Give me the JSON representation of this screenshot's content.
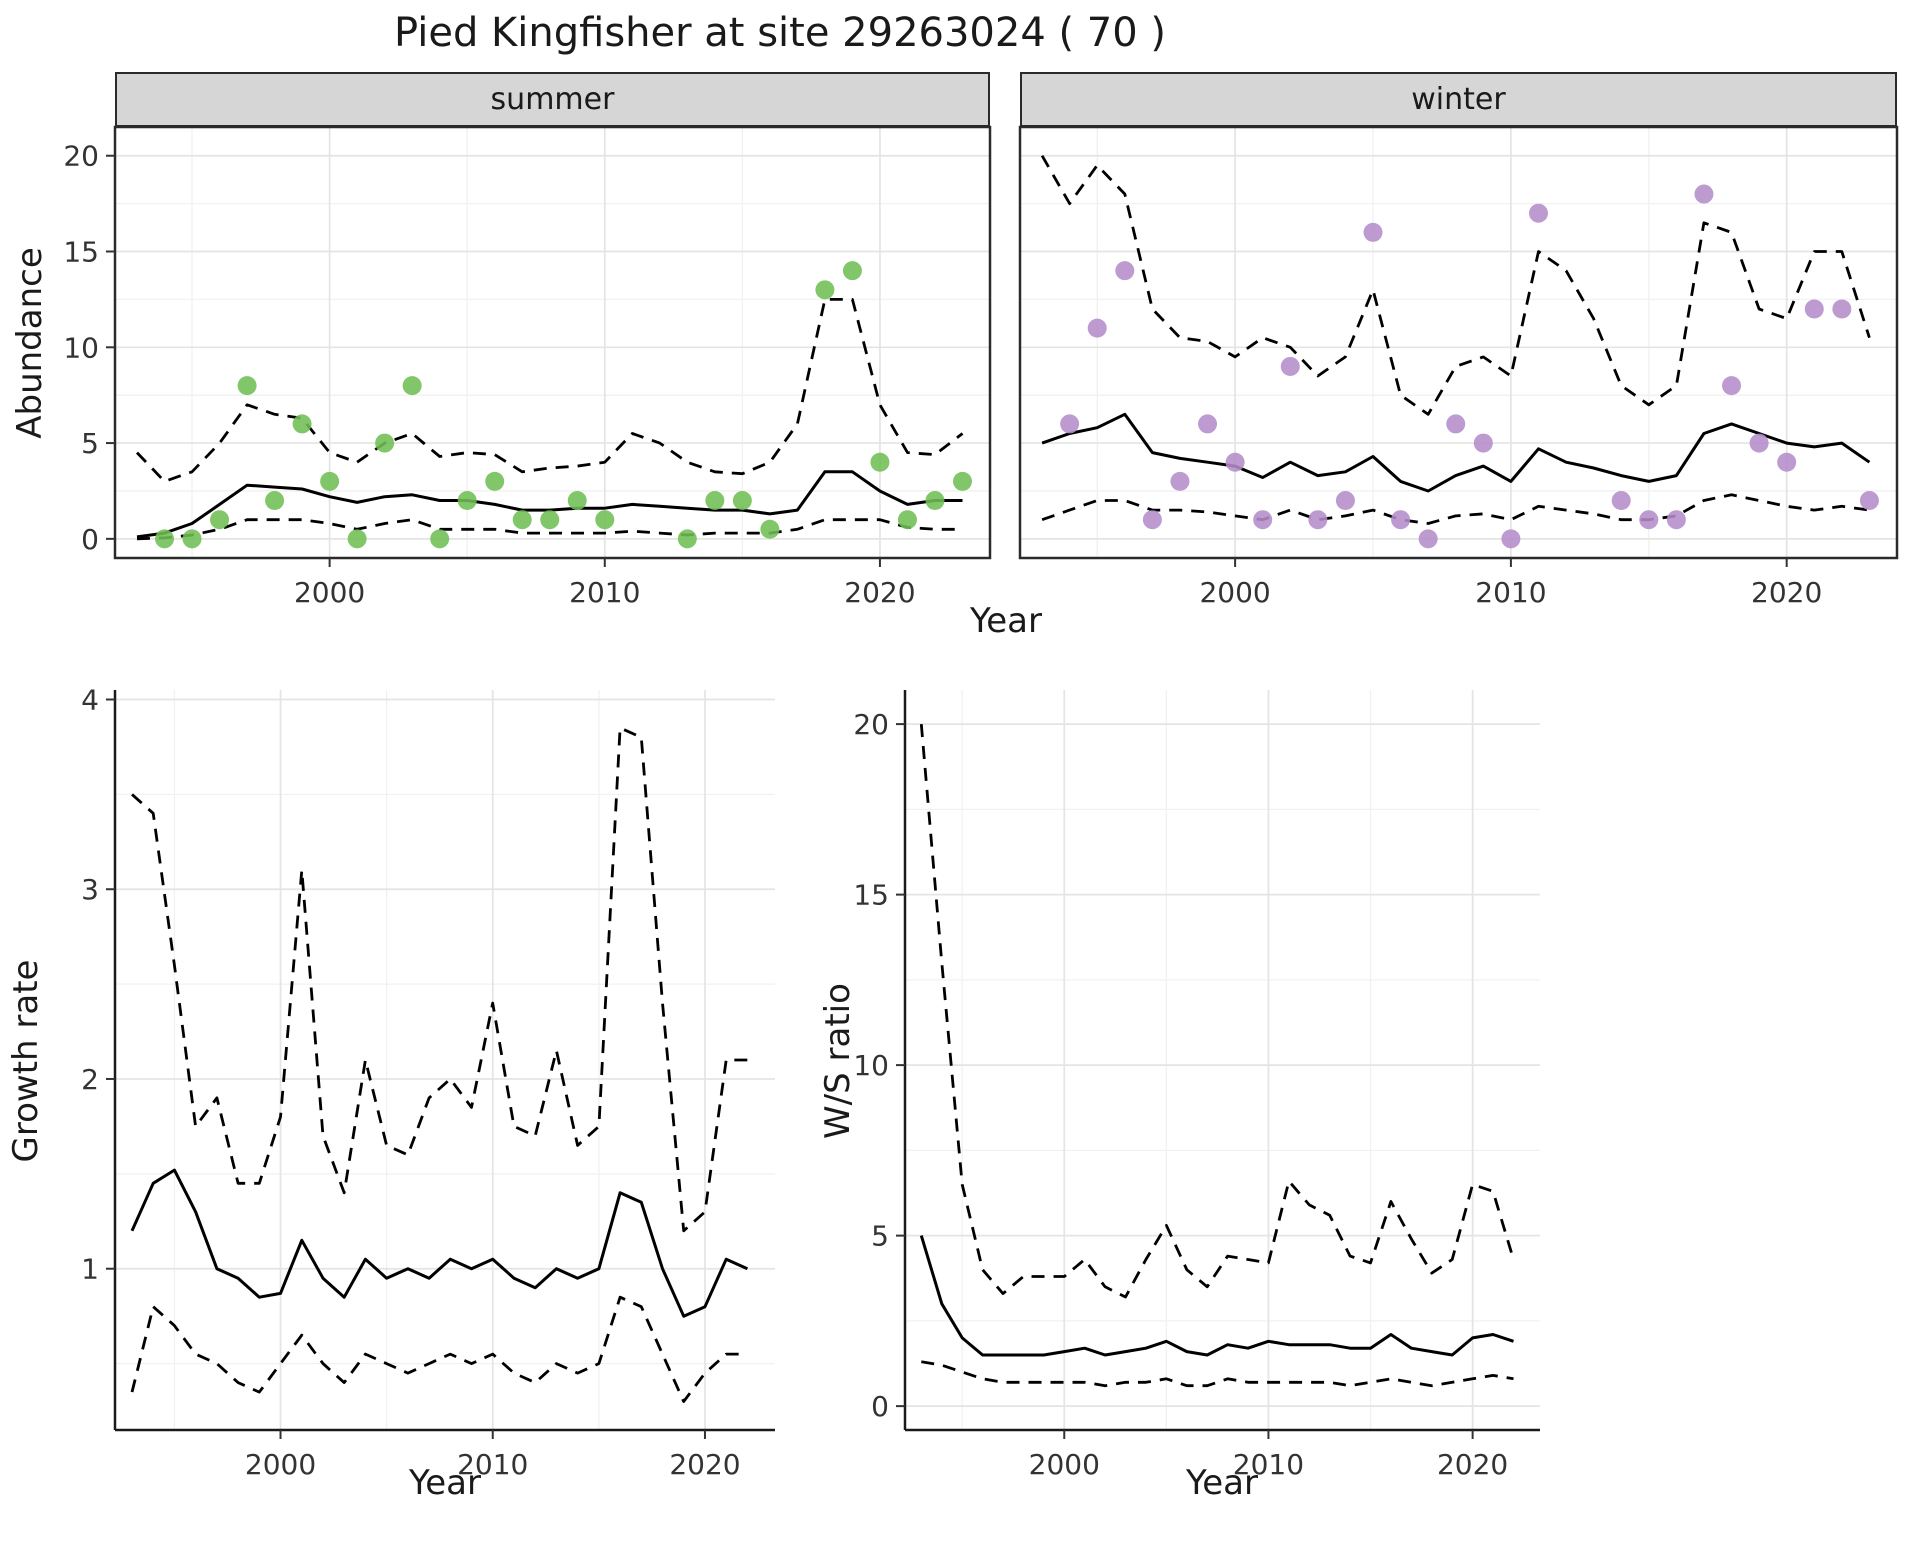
{
  "title": "Pied Kingfisher at site 29263024 ( 70 )",
  "facets": [
    {
      "label": "summer"
    },
    {
      "label": "winter"
    }
  ],
  "axes": {
    "abundance": "Abundance",
    "growth_rate": "Growth rate",
    "ws_ratio": "W/S ratio",
    "year": "Year"
  },
  "colors": {
    "summer_points": "#6fbf54",
    "winter_points": "#b48cc8",
    "line": "#000000",
    "grid_major": "#e4e4e4",
    "grid_minor": "#f1f1f1",
    "strip_bg": "#d6d6d6",
    "frame": "#2b2b2b",
    "tick_text": "#333333"
  },
  "chart_data": [
    {
      "id": "abundance_summer",
      "type": "line",
      "facet": "summer",
      "xlabel": "Year",
      "ylabel": "Abundance",
      "xlim": [
        1992.2,
        2024.0
      ],
      "ylim": [
        -1,
        21.5
      ],
      "xticks": [
        2000,
        2010,
        2020
      ],
      "yticks": [
        0,
        5,
        10,
        15,
        20
      ],
      "xminor": [
        1995,
        2005,
        2015
      ],
      "yminor": [
        2.5,
        7.5,
        12.5,
        17.5
      ],
      "show_y_ticklabels": true,
      "frame": "full",
      "x": [
        1993,
        1994,
        1995,
        1996,
        1997,
        1998,
        1999,
        2000,
        2001,
        2002,
        2003,
        2004,
        2005,
        2006,
        2007,
        2008,
        2009,
        2010,
        2011,
        2012,
        2013,
        2014,
        2015,
        2016,
        2017,
        2018,
        2019,
        2020,
        2021,
        2022,
        2023
      ],
      "series": [
        {
          "name": "fit",
          "style": "solid",
          "values": [
            0.1,
            0.3,
            0.8,
            1.8,
            2.8,
            2.7,
            2.6,
            2.2,
            1.9,
            2.2,
            2.3,
            2.0,
            2.0,
            1.8,
            1.5,
            1.5,
            1.6,
            1.6,
            1.8,
            1.7,
            1.6,
            1.5,
            1.5,
            1.3,
            1.5,
            3.5,
            3.5,
            2.5,
            1.8,
            2.0,
            2.0
          ]
        },
        {
          "name": "upper_ci",
          "style": "dashed",
          "values": [
            4.5,
            3.0,
            3.5,
            5.0,
            7.0,
            6.5,
            6.3,
            4.5,
            4.0,
            5.0,
            5.5,
            4.3,
            4.5,
            4.4,
            3.5,
            3.7,
            3.8,
            4.0,
            5.5,
            5.0,
            4.0,
            3.5,
            3.4,
            4.0,
            6.0,
            12.5,
            12.5,
            7.0,
            4.5,
            4.4,
            5.5
          ]
        },
        {
          "name": "lower_ci",
          "style": "dashed",
          "values": [
            0.0,
            0.05,
            0.2,
            0.5,
            1.0,
            1.0,
            1.0,
            0.8,
            0.5,
            0.8,
            1.0,
            0.5,
            0.5,
            0.5,
            0.3,
            0.3,
            0.3,
            0.3,
            0.4,
            0.3,
            0.2,
            0.3,
            0.3,
            0.3,
            0.5,
            1.0,
            1.0,
            1.0,
            0.6,
            0.5,
            0.5
          ]
        }
      ],
      "points": {
        "name": "observations",
        "color_key": "summer_points",
        "x": [
          1994,
          1995,
          1996,
          1997,
          1998,
          1999,
          2000,
          2001,
          2002,
          2003,
          2004,
          2005,
          2006,
          2007,
          2008,
          2009,
          2010,
          2013,
          2014,
          2015,
          2016,
          2018,
          2019,
          2020,
          2021,
          2022,
          2023
        ],
        "y": [
          0,
          0,
          1,
          8,
          2,
          6,
          3,
          0,
          5,
          8,
          0,
          2,
          3,
          1,
          1,
          2,
          1,
          0,
          2,
          2,
          0.5,
          13,
          14,
          4,
          1,
          2,
          3
        ]
      }
    },
    {
      "id": "abundance_winter",
      "type": "line",
      "facet": "winter",
      "xlabel": "Year",
      "ylabel": "Abundance",
      "xlim": [
        1992.2,
        2024.0
      ],
      "ylim": [
        -1,
        21.5
      ],
      "xticks": [
        2000,
        2010,
        2020
      ],
      "yticks": [
        0,
        5,
        10,
        15,
        20
      ],
      "xminor": [
        1995,
        2005,
        2015
      ],
      "yminor": [
        2.5,
        7.5,
        12.5,
        17.5
      ],
      "show_y_ticklabels": false,
      "frame": "full",
      "x": [
        1993,
        1994,
        1995,
        1996,
        1997,
        1998,
        1999,
        2000,
        2001,
        2002,
        2003,
        2004,
        2005,
        2006,
        2007,
        2008,
        2009,
        2010,
        2011,
        2012,
        2013,
        2014,
        2015,
        2016,
        2017,
        2018,
        2019,
        2020,
        2021,
        2022,
        2023
      ],
      "series": [
        {
          "name": "fit",
          "style": "solid",
          "values": [
            5.0,
            5.5,
            5.8,
            6.5,
            4.5,
            4.2,
            4.0,
            3.8,
            3.2,
            4.0,
            3.3,
            3.5,
            4.3,
            3.0,
            2.5,
            3.3,
            3.8,
            3.0,
            4.7,
            4.0,
            3.7,
            3.3,
            3.0,
            3.3,
            5.5,
            6.0,
            5.5,
            5.0,
            4.8,
            5.0,
            4.0
          ]
        },
        {
          "name": "upper_ci",
          "style": "dashed",
          "values": [
            20,
            17.5,
            19.5,
            18,
            12,
            10.5,
            10.3,
            9.5,
            10.5,
            10,
            8.5,
            9.5,
            13,
            7.5,
            6.5,
            9,
            9.5,
            8.5,
            15,
            14,
            11.5,
            8,
            7,
            8,
            16.5,
            16,
            12,
            11.5,
            15,
            15,
            10.5
          ]
        },
        {
          "name": "lower_ci",
          "style": "dashed",
          "values": [
            1.0,
            1.5,
            2.0,
            2.0,
            1.5,
            1.5,
            1.4,
            1.2,
            1.0,
            1.5,
            1.0,
            1.2,
            1.5,
            1.0,
            0.8,
            1.2,
            1.3,
            1.0,
            1.7,
            1.5,
            1.3,
            1.0,
            1.0,
            1.2,
            2.0,
            2.3,
            2.0,
            1.7,
            1.5,
            1.7,
            1.5
          ]
        }
      ],
      "points": {
        "name": "observations",
        "color_key": "winter_points",
        "x": [
          1994,
          1995,
          1996,
          1997,
          1998,
          1999,
          2000,
          2001,
          2002,
          2003,
          2004,
          2005,
          2006,
          2007,
          2008,
          2009,
          2010,
          2011,
          2014,
          2015,
          2016,
          2017,
          2018,
          2019,
          2020,
          2021,
          2022,
          2023
        ],
        "y": [
          6,
          11,
          14,
          1,
          3,
          6,
          4,
          1,
          9,
          1,
          2,
          16,
          1,
          0,
          6,
          5,
          0,
          17,
          2,
          1,
          1,
          18,
          8,
          5,
          4,
          12,
          12,
          2
        ]
      }
    },
    {
      "id": "growth_rate",
      "type": "line",
      "xlabel": "Year",
      "ylabel": "Growth rate",
      "xlim": [
        1992.2,
        2023.3
      ],
      "ylim": [
        0.15,
        4.05
      ],
      "xticks": [
        2000,
        2010,
        2020
      ],
      "yticks": [
        1,
        2,
        3,
        4
      ],
      "xminor": [
        1995,
        2005,
        2015
      ],
      "yminor": [
        0.5,
        1.5,
        2.5,
        3.5
      ],
      "show_y_ticklabels": true,
      "frame": "open",
      "x": [
        1993,
        1994,
        1995,
        1996,
        1997,
        1998,
        1999,
        2000,
        2001,
        2002,
        2003,
        2004,
        2005,
        2006,
        2007,
        2008,
        2009,
        2010,
        2011,
        2012,
        2013,
        2014,
        2015,
        2016,
        2017,
        2018,
        2019,
        2020,
        2021,
        2022
      ],
      "series": [
        {
          "name": "fit",
          "style": "solid",
          "values": [
            1.2,
            1.45,
            1.52,
            1.3,
            1.0,
            0.95,
            0.85,
            0.87,
            1.15,
            0.95,
            0.85,
            1.05,
            0.95,
            1.0,
            0.95,
            1.05,
            1.0,
            1.05,
            0.95,
            0.9,
            1.0,
            0.95,
            1.0,
            1.4,
            1.35,
            1.0,
            0.75,
            0.8,
            1.05,
            1.0
          ]
        },
        {
          "name": "upper_ci",
          "style": "dashed",
          "values": [
            3.5,
            3.4,
            2.6,
            1.75,
            1.9,
            1.45,
            1.45,
            1.8,
            3.1,
            1.7,
            1.4,
            2.1,
            1.65,
            1.6,
            1.9,
            2.0,
            1.85,
            2.4,
            1.75,
            1.7,
            2.15,
            1.65,
            1.75,
            3.85,
            3.8,
            2.4,
            1.2,
            1.3,
            2.1,
            2.1
          ]
        },
        {
          "name": "lower_ci",
          "style": "dashed",
          "values": [
            0.35,
            0.8,
            0.7,
            0.55,
            0.5,
            0.4,
            0.35,
            0.5,
            0.65,
            0.5,
            0.4,
            0.55,
            0.5,
            0.45,
            0.5,
            0.55,
            0.5,
            0.55,
            0.45,
            0.4,
            0.5,
            0.45,
            0.5,
            0.85,
            0.8,
            0.55,
            0.3,
            0.45,
            0.55,
            0.55
          ]
        }
      ]
    },
    {
      "id": "ws_ratio",
      "type": "line",
      "xlabel": "Year",
      "ylabel": "W/S ratio",
      "xlim": [
        1992.2,
        2023.3
      ],
      "ylim": [
        -0.7,
        21
      ],
      "xticks": [
        2000,
        2010,
        2020
      ],
      "yticks": [
        0,
        5,
        10,
        15,
        20
      ],
      "xminor": [
        1995,
        2005,
        2015
      ],
      "yminor": [
        2.5,
        7.5,
        12.5,
        17.5
      ],
      "show_y_ticklabels": true,
      "frame": "open",
      "x": [
        1993,
        1994,
        1995,
        1996,
        1997,
        1998,
        1999,
        2000,
        2001,
        2002,
        2003,
        2004,
        2005,
        2006,
        2007,
        2008,
        2009,
        2010,
        2011,
        2012,
        2013,
        2014,
        2015,
        2016,
        2017,
        2018,
        2019,
        2020,
        2021,
        2022
      ],
      "series": [
        {
          "name": "fit",
          "style": "solid",
          "values": [
            5.0,
            3.0,
            2.0,
            1.5,
            1.5,
            1.5,
            1.5,
            1.6,
            1.7,
            1.5,
            1.6,
            1.7,
            1.9,
            1.6,
            1.5,
            1.8,
            1.7,
            1.9,
            1.8,
            1.8,
            1.8,
            1.7,
            1.7,
            2.1,
            1.7,
            1.6,
            1.5,
            2.0,
            2.1,
            1.9
          ]
        },
        {
          "name": "upper_ci",
          "style": "dashed",
          "values": [
            20,
            13,
            6.5,
            4.0,
            3.3,
            3.8,
            3.8,
            3.8,
            4.3,
            3.5,
            3.2,
            4.3,
            5.3,
            4.0,
            3.5,
            4.4,
            4.3,
            4.2,
            6.6,
            5.9,
            5.6,
            4.4,
            4.2,
            6.0,
            4.9,
            3.9,
            4.3,
            6.5,
            6.3,
            4.3
          ]
        },
        {
          "name": "lower_ci",
          "style": "dashed",
          "values": [
            1.3,
            1.2,
            1.0,
            0.8,
            0.7,
            0.7,
            0.7,
            0.7,
            0.7,
            0.6,
            0.7,
            0.7,
            0.8,
            0.6,
            0.6,
            0.8,
            0.7,
            0.7,
            0.7,
            0.7,
            0.7,
            0.6,
            0.7,
            0.8,
            0.7,
            0.6,
            0.7,
            0.8,
            0.9,
            0.8
          ]
        }
      ]
    }
  ]
}
